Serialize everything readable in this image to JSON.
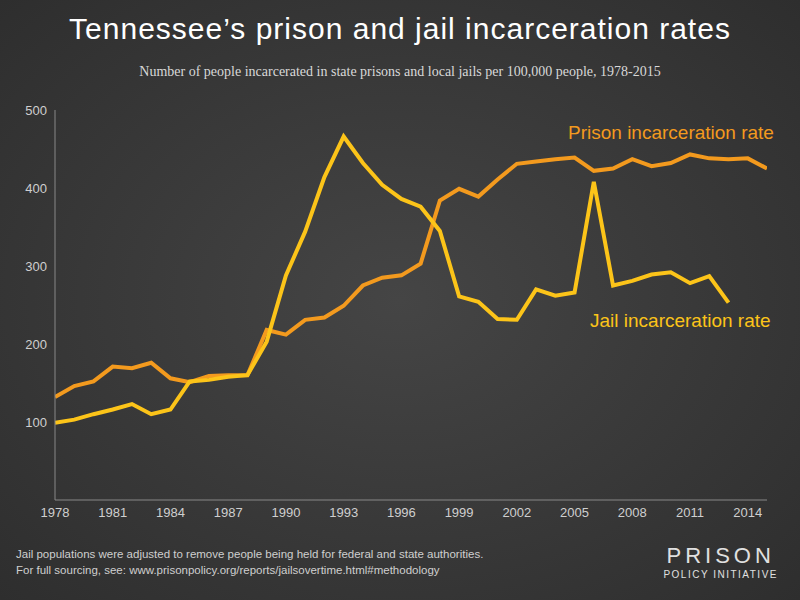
{
  "chart_data": {
    "type": "line",
    "title": "Tennessee’s prison and jail incarceration rates",
    "subtitle": "Number of people incarcerated in state prisons and local jails per 100,000 people, 1978-2015",
    "x": [
      1978,
      1979,
      1980,
      1981,
      1982,
      1983,
      1984,
      1985,
      1986,
      1987,
      1988,
      1989,
      1990,
      1991,
      1992,
      1993,
      1994,
      1995,
      1996,
      1997,
      1998,
      1999,
      2000,
      2001,
      2002,
      2003,
      2004,
      2005,
      2006,
      2007,
      2008,
      2009,
      2010,
      2011,
      2012,
      2013,
      2014,
      2015
    ],
    "series": [
      {
        "name": "Prison incarceration rate",
        "color": "#f39a1e",
        "values": [
          132,
          146,
          152,
          171,
          169,
          176,
          156,
          151,
          159,
          160,
          160,
          218,
          212,
          231,
          234,
          249,
          275,
          285,
          288,
          303,
          384,
          399,
          389,
          411,
          431,
          434,
          437,
          439,
          422,
          425,
          437,
          428,
          432,
          443,
          438,
          437,
          438,
          425
        ]
      },
      {
        "name": "Jail incarceration rate",
        "color": "#fcc419",
        "values": [
          99,
          103,
          110,
          116,
          123,
          110,
          116,
          152,
          154,
          158,
          160,
          203,
          288,
          344,
          414,
          466,
          432,
          404,
          386,
          376,
          345,
          261,
          254,
          232,
          231,
          270,
          262,
          266,
          408,
          275,
          281,
          289,
          292,
          278,
          287,
          253,
          null,
          null
        ]
      }
    ],
    "xlim": [
      1978,
      2015
    ],
    "xticks": [
      1978,
      1981,
      1984,
      1987,
      1990,
      1993,
      1996,
      1999,
      2002,
      2005,
      2008,
      2011,
      2014
    ],
    "ylim": [
      0,
      500
    ],
    "yticks": [
      100,
      200,
      300,
      400,
      500
    ],
    "grid": false,
    "notes": [
      "Jail populations were adjusted to remove people being held for federal and state authorities.",
      "For full sourcing, see: www.prisonpolicy.org/reports/jailsovertime.html#methodology"
    ],
    "logo": [
      "PRISON",
      "POLICY INITIATIVE"
    ]
  }
}
